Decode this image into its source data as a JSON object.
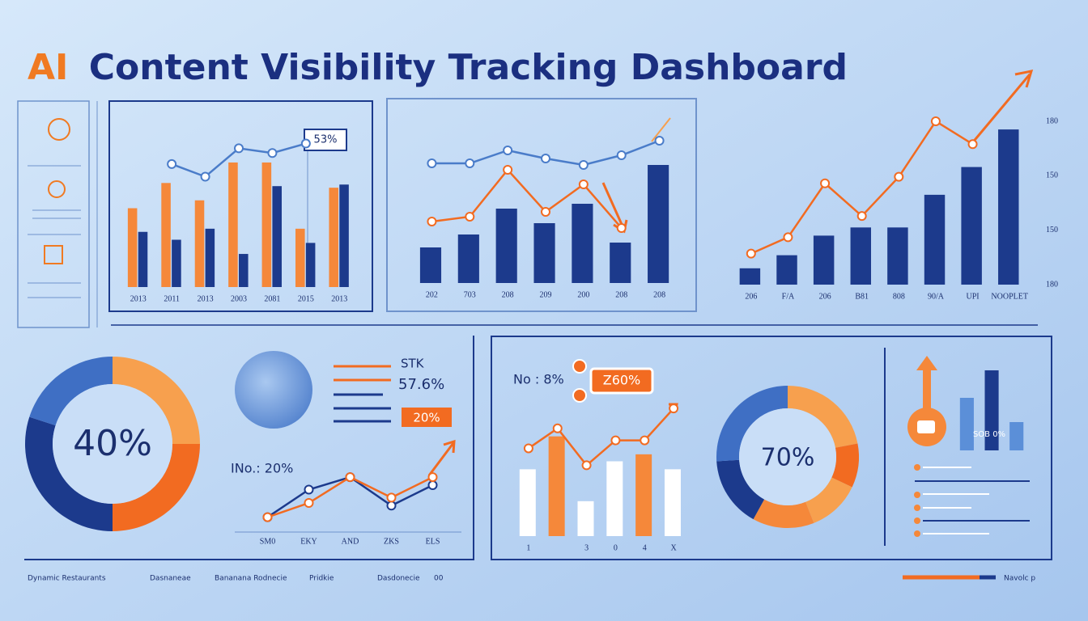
{
  "header": {
    "accent": "AI",
    "title": "Content Visibility Tracking Dashboard"
  },
  "chart_data": [
    {
      "type": "bar",
      "categories": [
        "2013",
        "2011",
        "2013",
        "2003",
        "2081",
        "2015",
        "2013"
      ],
      "ylim": [
        0,
        100
      ],
      "series": [
        {
          "color": "#f5883a",
          "values": [
            50,
            66,
            55,
            79,
            79,
            37,
            63
          ]
        },
        {
          "color": "#1c3a8c",
          "values": [
            35,
            30,
            37,
            21,
            64,
            28,
            65
          ]
        },
        {
          "type": "line",
          "color": "#4a7cc9",
          "values": [
            null,
            78,
            70,
            88,
            85,
            91,
            null
          ]
        }
      ],
      "annotations": [
        "53%"
      ]
    },
    {
      "type": "bar",
      "categories": [
        "202",
        "703",
        "208",
        "209",
        "200",
        "208",
        "208"
      ],
      "ylim": [
        0,
        100
      ],
      "series": [
        {
          "color": "#1c3a8c",
          "values": [
            22,
            30,
            46,
            37,
            49,
            25,
            73
          ]
        },
        {
          "type": "line",
          "color": "#4a7cc9",
          "values": [
            74,
            74,
            82,
            77,
            73,
            79,
            88
          ]
        },
        {
          "type": "line",
          "color": "#f26b21",
          "values": [
            38,
            41,
            70,
            44,
            61,
            34,
            null
          ]
        }
      ]
    },
    {
      "type": "bar",
      "categories": [
        "206",
        "F/A",
        "206",
        "B81",
        "808",
        "90/A",
        "UPI",
        "NOOPLET"
      ],
      "ylim": [
        0,
        100
      ],
      "series": [
        {
          "color": "#1c3a8c",
          "values": [
            10,
            18,
            30,
            35,
            35,
            55,
            72,
            95
          ]
        },
        {
          "type": "line",
          "color": "#f26b21",
          "values": [
            19,
            29,
            62,
            42,
            66,
            100,
            86,
            null
          ]
        }
      ],
      "right_labels": [
        "180",
        "150",
        "150",
        "180"
      ]
    },
    {
      "type": "donut",
      "center_label": "40%",
      "values": [
        25,
        25,
        30,
        20
      ],
      "colors": [
        "#f7a04e",
        "#f26b21",
        "#1c3a8c",
        "#3f6fc4"
      ]
    },
    {
      "type": "line",
      "categories": [
        "SM0",
        "EKY",
        "AND",
        "ZKS",
        "ELS"
      ],
      "ylim": [
        0,
        100
      ],
      "series": [
        {
          "type": "line",
          "color": "#1c3a8c",
          "values": [
            14,
            45,
            59,
            27,
            50
          ]
        },
        {
          "type": "line",
          "color": "#f26b21",
          "values": [
            14,
            30,
            59,
            36,
            59
          ]
        }
      ],
      "annotations": [
        "INo.: 20%"
      ]
    },
    {
      "type": "bar",
      "categories": [
        "1",
        null,
        "3",
        "0",
        "4",
        "X"
      ],
      "ylim": [
        0,
        150
      ],
      "series": [
        {
          "colors": [
            "#ffffff",
            "#f5883a",
            "#ffffff",
            "#ffffff",
            "#f5883a",
            "#ffffff"
          ],
          "values": [
            67,
            100,
            35,
            75,
            82,
            67
          ]
        },
        {
          "type": "line",
          "color": "#f26b21",
          "values": [
            88,
            108,
            71,
            96,
            96,
            128
          ]
        }
      ],
      "annotations": [
        "No : 8%",
        "Z60%"
      ]
    },
    {
      "type": "donut",
      "center_label": "70%",
      "values": [
        22,
        10,
        12,
        14,
        16,
        26
      ],
      "colors": [
        "#f7a04e",
        "#f26b21",
        "#f7a04e",
        "#f5883a",
        "#1c3a8c",
        "#3f6fc4"
      ]
    },
    {
      "type": "bar",
      "ylim": [
        0,
        100
      ],
      "series": [
        {
          "colors": [
            "#5b8fd8",
            "#1c3a8c",
            "#5b8fd8"
          ],
          "values": [
            65,
            99,
            35
          ]
        }
      ],
      "annotations": [
        "SOB 0%"
      ]
    }
  ],
  "legend_panel": [
    "STK",
    "57.6%",
    "20%"
  ],
  "footer": [
    "Dynamic Restaurants",
    "Dasnaneae",
    "Bananana Rodnecie",
    "Pridkie",
    "Dasdonecie",
    "00",
    "Navolc p"
  ]
}
